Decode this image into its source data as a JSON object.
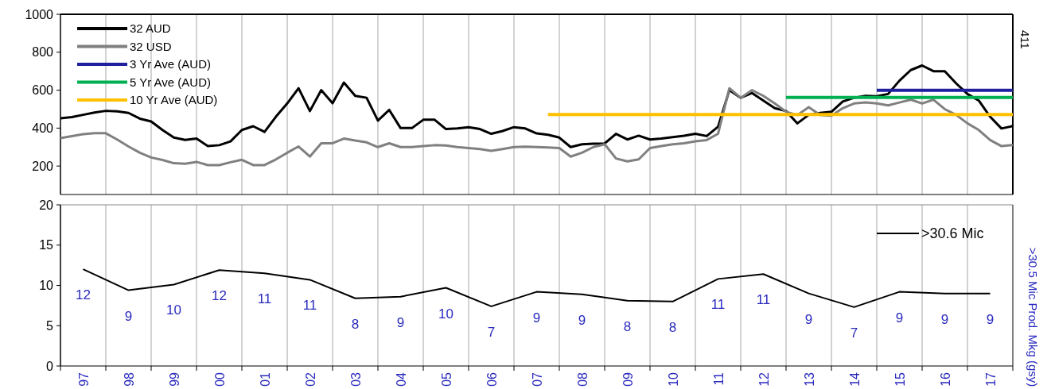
{
  "chart_data": [
    {
      "type": "line",
      "categories": [
        null,
        null,
        null,
        null,
        null,
        null,
        null,
        null,
        null,
        null,
        null,
        null,
        null,
        null,
        null,
        null,
        null,
        null,
        null,
        null,
        null,
        null,
        null,
        null,
        null,
        null,
        null,
        null,
        null,
        null,
        null,
        null,
        null,
        null,
        null,
        null,
        null,
        null,
        null,
        null,
        null,
        null,
        null,
        null,
        null,
        null,
        null,
        null,
        null,
        null,
        null,
        null,
        null,
        null,
        null,
        null,
        null,
        null,
        null,
        null,
        null,
        null,
        null,
        null,
        null,
        null,
        null,
        null,
        null,
        null,
        null,
        null,
        null,
        null,
        null,
        null,
        null,
        null,
        null,
        null,
        null,
        null,
        null,
        null,
        null
      ],
      "ylim": [
        50,
        1000
      ],
      "yticks": [
        200,
        400,
        600,
        800,
        1000
      ],
      "tick_labels": "y",
      "grid": "x",
      "legend": "top left",
      "marker": "none",
      "annotations": [
        "411"
      ],
      "series": [
        {
          "name": "32 AUD",
          "color": "#000000",
          "values": [
            452,
            458,
            470,
            482,
            491,
            488,
            480,
            450,
            435,
            390,
            350,
            338,
            345,
            305,
            310,
            330,
            390,
            410,
            380,
            460,
            530,
            610,
            490,
            600,
            531,
            640,
            570,
            560,
            440,
            496,
            400,
            400,
            444,
            444,
            395,
            398,
            405,
            395,
            370,
            385,
            405,
            398,
            372,
            365,
            350,
            300,
            315,
            318,
            319,
            370,
            340,
            360,
            340,
            345,
            352,
            360,
            370,
            358,
            407,
            600,
            560,
            585,
            545,
            505,
            490,
            425,
            470,
            480,
            486,
            540,
            560,
            570,
            568,
            580,
            650,
            706,
            730,
            700,
            700,
            636,
            580,
            545,
            460,
            398,
            411
          ]
        },
        {
          "name": "32 USD",
          "color": "#808080",
          "values": [
            347,
            358,
            368,
            373,
            373,
            340,
            303,
            270,
            245,
            232,
            215,
            212,
            222,
            205,
            205,
            220,
            233,
            205,
            205,
            235,
            270,
            303,
            250,
            320,
            320,
            345,
            335,
            325,
            300,
            320,
            300,
            300,
            305,
            310,
            308,
            300,
            295,
            290,
            280,
            290,
            300,
            302,
            300,
            298,
            295,
            250,
            270,
            300,
            315,
            240,
            225,
            235,
            295,
            305,
            315,
            320,
            330,
            337,
            370,
            610,
            560,
            600,
            570,
            530,
            486,
            469,
            510,
            470,
            465,
            505,
            530,
            535,
            530,
            520,
            535,
            550,
            530,
            550,
            500,
            470,
            425,
            390,
            337,
            305,
            311
          ]
        },
        {
          "name": "3 Yr Ave (AUD)",
          "color": "#20209e",
          "values": [
            null,
            null,
            null,
            null,
            null,
            null,
            null,
            null,
            null,
            null,
            null,
            null,
            null,
            null,
            null,
            null,
            null,
            null,
            null,
            null,
            null,
            null,
            null,
            null,
            null,
            null,
            null,
            null,
            null,
            null,
            null,
            null,
            null,
            null,
            null,
            null,
            null,
            null,
            null,
            null,
            null,
            null,
            null,
            null,
            null,
            null,
            null,
            null,
            null,
            null,
            null,
            null,
            null,
            null,
            null,
            null,
            null,
            null,
            null,
            null,
            null,
            null,
            null,
            null,
            null,
            null,
            null,
            null,
            null,
            null,
            null,
            null,
            599,
            599,
            599,
            599,
            599,
            599,
            599,
            599,
            599,
            599,
            599,
            599,
            599
          ]
        },
        {
          "name": "5 Yr Ave (AUD)",
          "color": "#00b050",
          "values": [
            null,
            null,
            null,
            null,
            null,
            null,
            null,
            null,
            null,
            null,
            null,
            null,
            null,
            null,
            null,
            null,
            null,
            null,
            null,
            null,
            null,
            null,
            null,
            null,
            null,
            null,
            null,
            null,
            null,
            null,
            null,
            null,
            null,
            null,
            null,
            null,
            null,
            null,
            null,
            null,
            null,
            null,
            null,
            null,
            null,
            null,
            null,
            null,
            null,
            null,
            null,
            null,
            null,
            null,
            null,
            null,
            null,
            null,
            null,
            null,
            null,
            null,
            null,
            null,
            562,
            562,
            562,
            562,
            562,
            562,
            562,
            562,
            562,
            562,
            562,
            562,
            562,
            562,
            562,
            562,
            562,
            562,
            562,
            562,
            562
          ]
        },
        {
          "name": "10 Yr Ave (AUD)",
          "color": "#ffc000",
          "values": [
            null,
            null,
            null,
            null,
            null,
            null,
            null,
            null,
            null,
            null,
            null,
            null,
            null,
            null,
            null,
            null,
            null,
            null,
            null,
            null,
            null,
            null,
            null,
            null,
            null,
            null,
            null,
            null,
            null,
            null,
            null,
            null,
            null,
            null,
            null,
            null,
            null,
            null,
            null,
            null,
            null,
            null,
            null,
            472,
            472,
            472,
            472,
            472,
            472,
            472,
            472,
            472,
            472,
            472,
            472,
            472,
            472,
            472,
            472,
            472,
            472,
            472,
            472,
            472,
            472,
            472,
            472,
            472,
            472,
            472,
            472,
            472,
            472,
            472,
            472,
            472,
            472,
            472,
            472,
            472,
            472,
            472,
            472,
            472,
            472
          ]
        }
      ]
    },
    {
      "type": "line",
      "categories": [
        "97",
        "98",
        "99",
        "00",
        "01",
        "02",
        "03",
        "04",
        "05",
        "06",
        "07",
        "08",
        "09",
        "10",
        "11",
        "12",
        "13",
        "14",
        "15",
        "16",
        "17"
      ],
      "ylim": [
        0,
        20
      ],
      "yticks": [
        0,
        5,
        10,
        15,
        20
      ],
      "grid": "x",
      "legend": "top right",
      "marker": "none",
      "ylabel": ">30.5 Mic Prod. Mkg (gsy)",
      "series": [
        {
          "name": ">30.6 Mic",
          "color": "#000000",
          "values": [
            12.0,
            9.4,
            10.1,
            11.9,
            11.5,
            10.7,
            8.4,
            8.6,
            9.7,
            7.4,
            9.2,
            8.9,
            8.1,
            8.0,
            10.8,
            11.4,
            9.0,
            7.3,
            9.2,
            9.0,
            9.0
          ],
          "value_labels": [
            "12",
            "9",
            "10",
            "12",
            "11",
            "11",
            "8",
            "9",
            "10",
            "7",
            "9",
            "9",
            "8",
            "8",
            "11",
            "11",
            "9",
            "7",
            "9",
            "9",
            "9"
          ]
        }
      ]
    }
  ]
}
